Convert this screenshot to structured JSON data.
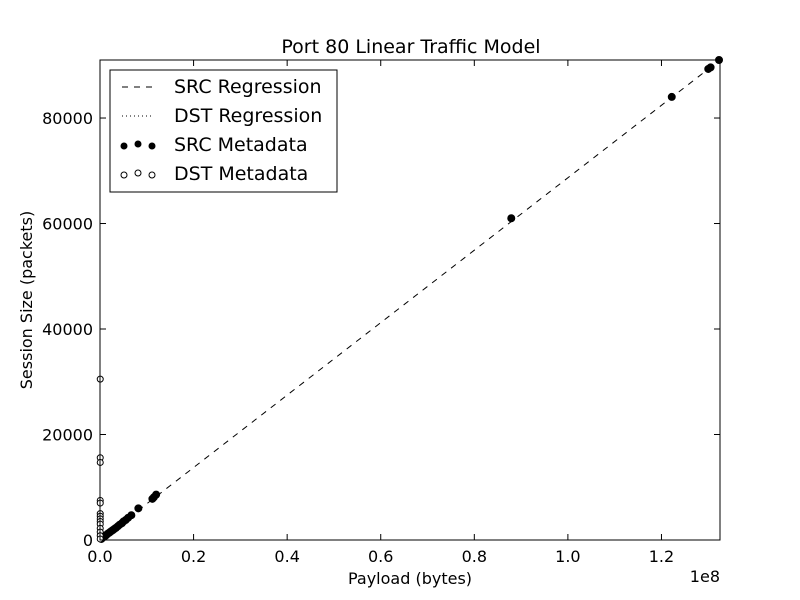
{
  "chart_data": {
    "type": "scatter",
    "title": "Port 80 Linear Traffic Model",
    "xlabel": "Payload (bytes)",
    "ylabel": "Session Size (packets)",
    "x_multiplier_label": "1e8",
    "xlim": [
      0,
      1.3251
    ],
    "ylim": [
      0,
      91000
    ],
    "x_unit_note": "x values in units of 1e8 bytes",
    "xticks": [
      {
        "value": 0.0,
        "label": "0.0"
      },
      {
        "value": 0.2,
        "label": "0.2"
      },
      {
        "value": 0.4,
        "label": "0.4"
      },
      {
        "value": 0.6,
        "label": "0.6"
      },
      {
        "value": 0.8,
        "label": "0.8"
      },
      {
        "value": 1.0,
        "label": "1.0"
      },
      {
        "value": 1.2,
        "label": "1.2"
      }
    ],
    "yticks": [
      {
        "value": 0,
        "label": "0"
      },
      {
        "value": 20000,
        "label": "20000"
      },
      {
        "value": 40000,
        "label": "40000"
      },
      {
        "value": 60000,
        "label": "60000"
      },
      {
        "value": 80000,
        "label": "80000"
      }
    ],
    "legend": {
      "position": "top-left",
      "entries": [
        {
          "label": "SRC Regression",
          "style": "dashed"
        },
        {
          "label": "DST Regression",
          "style": "dotted"
        },
        {
          "label": "SRC Metadata",
          "style": "filled-marker"
        },
        {
          "label": "DST Metadata",
          "style": "open-marker"
        }
      ]
    },
    "series": [
      {
        "name": "SRC Regression",
        "kind": "line",
        "style": "dashed",
        "x": [
          0,
          1.3251
        ],
        "y": [
          0,
          91000
        ]
      },
      {
        "name": "DST Regression",
        "kind": "line",
        "style": "dotted",
        "x": [
          0,
          1.3251
        ],
        "y": [
          0,
          0
        ]
      },
      {
        "name": "SRC Metadata",
        "kind": "scatter",
        "marker": "filled",
        "x": [
          0.003,
          0.006,
          0.01,
          0.013,
          0.016,
          0.02,
          0.023,
          0.027,
          0.03,
          0.034,
          0.038,
          0.042,
          0.047,
          0.05,
          0.055,
          0.06,
          0.067,
          0.082,
          0.112,
          0.115,
          0.12,
          0.879,
          1.222,
          1.3,
          1.305,
          1.323
        ],
        "y": [
          200,
          450,
          700,
          900,
          1150,
          1400,
          1600,
          1850,
          2050,
          2300,
          2600,
          2900,
          3200,
          3500,
          3800,
          4200,
          4700,
          6000,
          7800,
          8100,
          8600,
          61000,
          84000,
          89300,
          89600,
          91000
        ]
      },
      {
        "name": "DST Metadata",
        "kind": "scatter",
        "marker": "open",
        "x": [
          0.0005,
          0.0005,
          0.0005,
          0.0005,
          0.0005,
          0.0005,
          0.0005,
          0.0005,
          0.0005,
          0.0005,
          0.0005,
          0.0005,
          0.0005,
          0.0005
        ],
        "y": [
          30500,
          15600,
          14700,
          7500,
          7000,
          5000,
          4500,
          4000,
          3500,
          3000,
          2200,
          1500,
          800,
          200
        ]
      }
    ]
  }
}
